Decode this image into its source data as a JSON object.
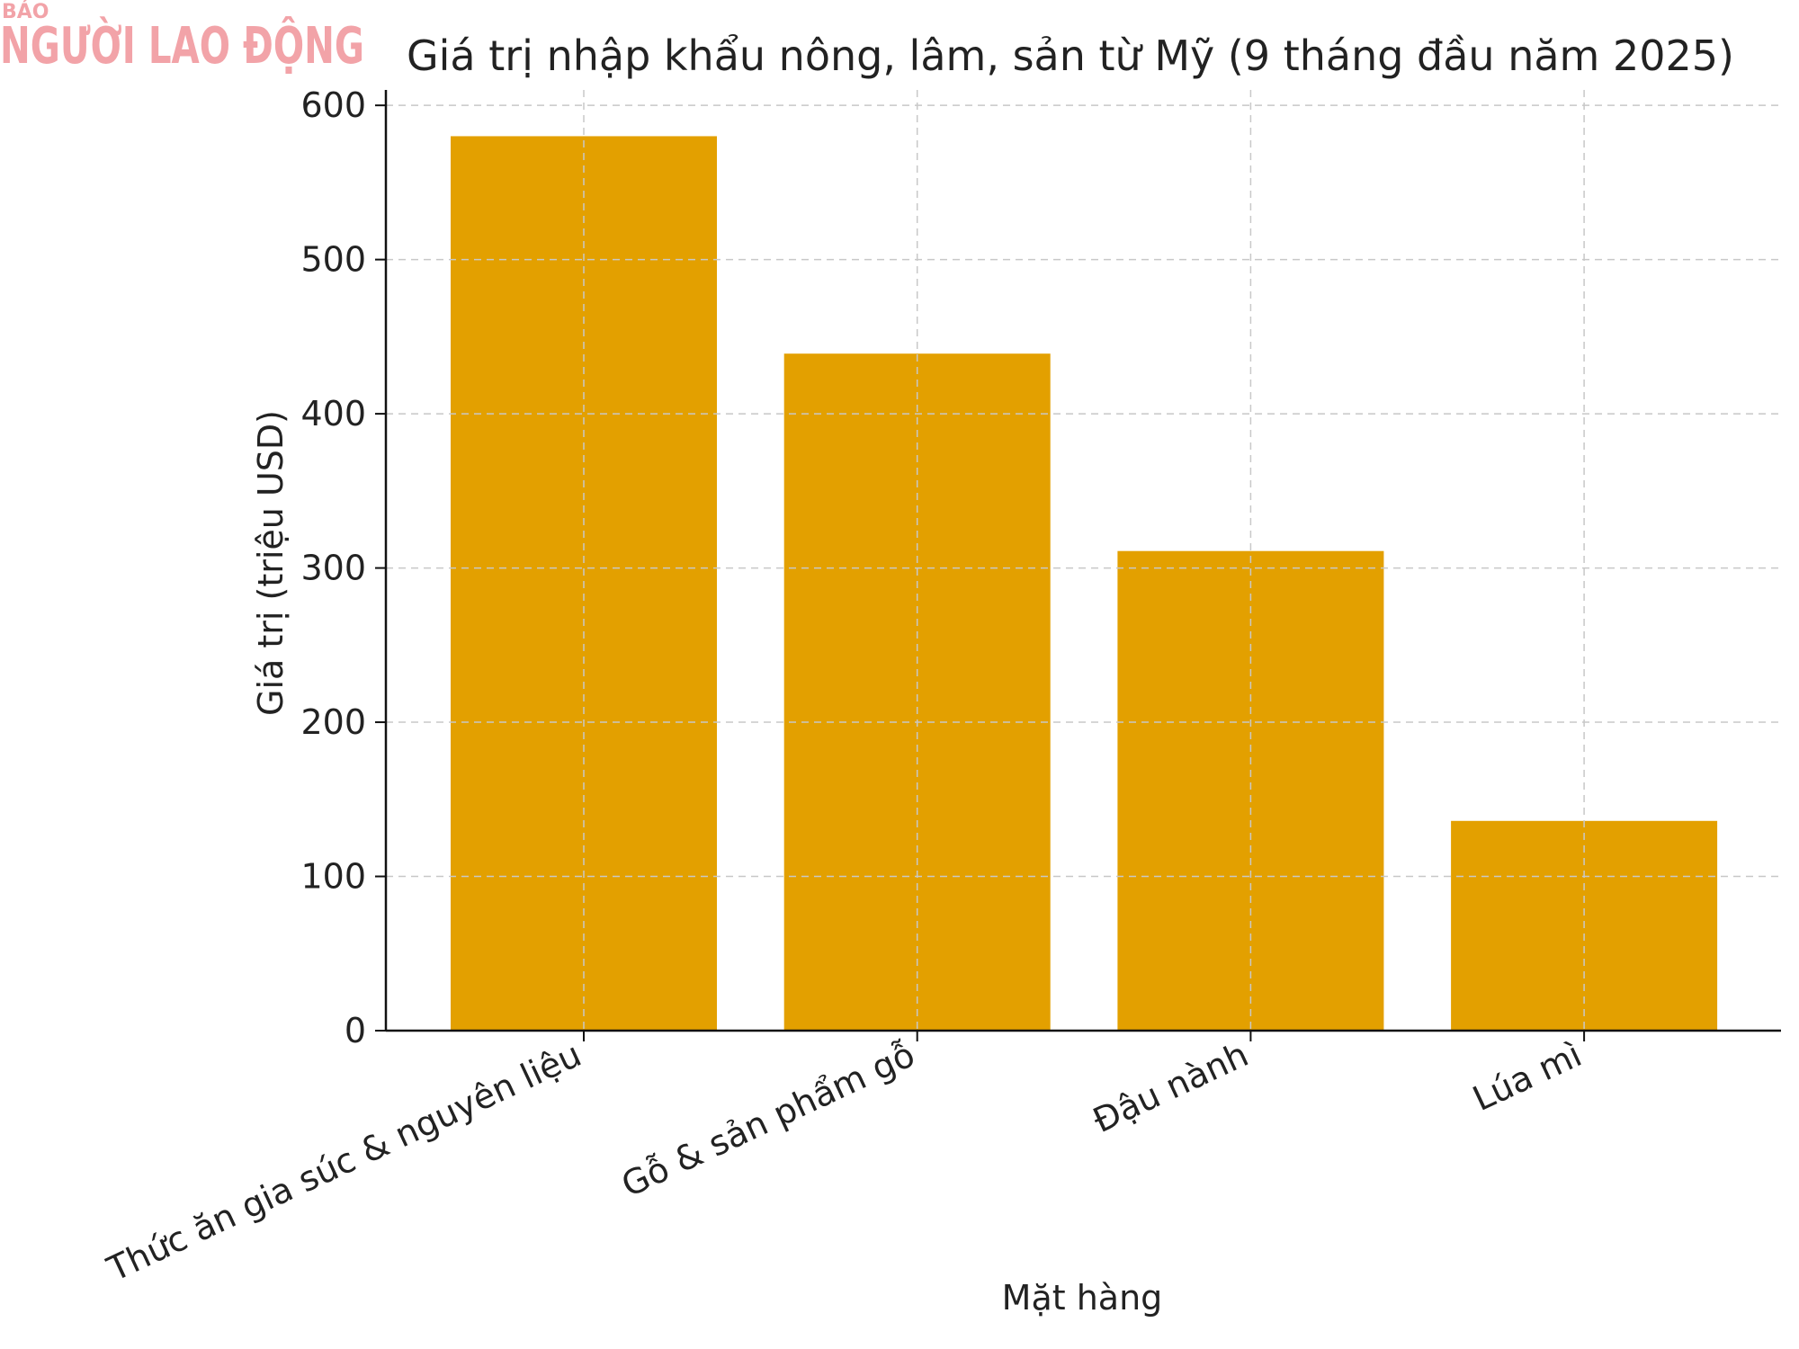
{
  "logo": {
    "top_text": "BÁO",
    "main_text": "NGƯỜI LAO ĐỘNG",
    "color": "#f2a3a8"
  },
  "chart_data": {
    "type": "bar",
    "title": "Giá trị nhập khẩu nông, lâm, sản từ Mỹ (9 tháng đầu năm 2025)",
    "xlabel": "Mặt hàng",
    "ylabel": "Giá trị (triệu USD)",
    "categories": [
      "Thức ăn gia súc & nguyên liệu",
      "Gỗ & sản phẩm gỗ",
      "Đậu nành",
      "Lúa mì"
    ],
    "values": [
      580,
      439,
      311,
      136
    ],
    "ylim": [
      0,
      610
    ],
    "yticks": [
      0,
      100,
      200,
      300,
      400,
      500,
      600
    ],
    "grid": true,
    "bar_color": "#e3a000"
  }
}
